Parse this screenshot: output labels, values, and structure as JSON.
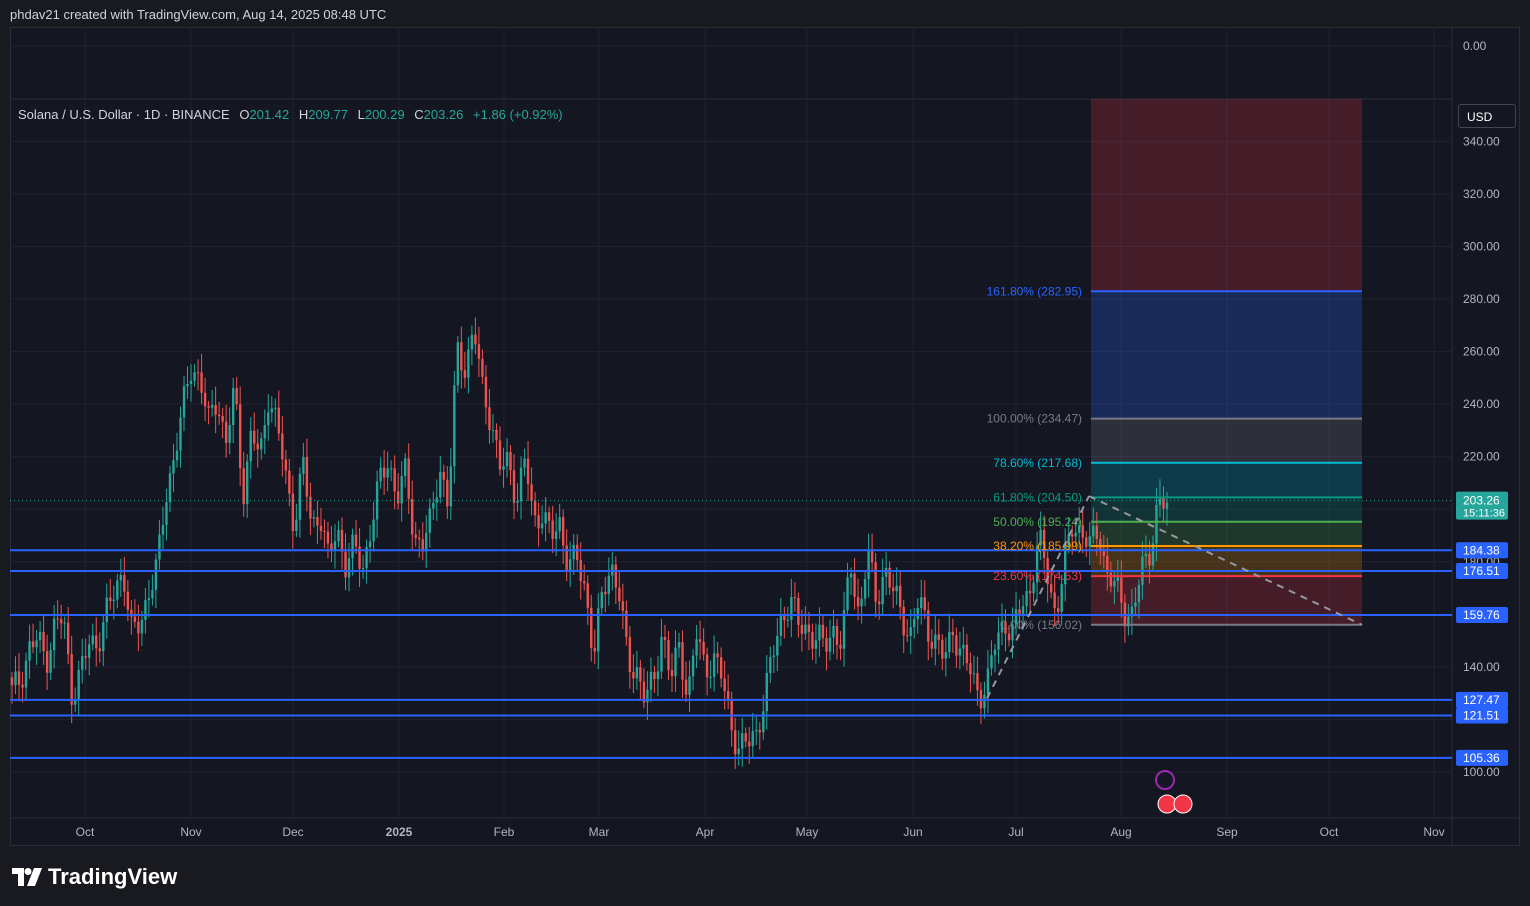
{
  "header": {
    "credit": "phdav21 created with TradingView.com, Aug 14, 2025 08:48 UTC"
  },
  "legend": {
    "symbol": "Solana / U.S. Dollar · 1D · BINANCE",
    "o_label": "O",
    "o": "201.42",
    "h_label": "H",
    "h": "209.77",
    "l_label": "L",
    "l": "200.29",
    "c_label": "C",
    "c": "203.26",
    "change": "+1.86 (+0.92%)"
  },
  "currency_button": "USD",
  "brand": "TradingView",
  "colors": {
    "up": "#26a69a",
    "down": "#ef5350",
    "support": "#2962ff",
    "background": "#141722"
  },
  "chart_data": {
    "type": "candlestick",
    "symbol": "SOLUSD",
    "timeframe": "1D",
    "y_axis": {
      "ticks": [
        0,
        100,
        120,
        140,
        160,
        180,
        200,
        220,
        240,
        260,
        280,
        300,
        320,
        340
      ],
      "tick_labels": [
        "0.00",
        "100.00",
        "120.00",
        "140.00",
        "160.00",
        "180.00",
        "200.00",
        "220.00",
        "240.00",
        "260.00",
        "280.00",
        "300.00",
        "320.00",
        "340.00"
      ]
    },
    "x_axis": {
      "labels": [
        "Oct",
        "Nov",
        "Dec",
        "2025",
        "Feb",
        "Mar",
        "Apr",
        "May",
        "Jun",
        "Jul",
        "Aug",
        "Sep",
        "Oct",
        "Nov"
      ],
      "bold": [
        "2025"
      ]
    },
    "last_price": {
      "value": "203.26",
      "countdown": "15:11:36"
    },
    "price_path": [
      [
        130,
        136
      ],
      [
        147,
        150
      ],
      [
        143,
        156
      ],
      [
        158,
        130
      ],
      [
        138,
        148
      ],
      [
        150,
        160
      ],
      [
        168,
        178
      ],
      [
        152,
        156
      ],
      [
        170,
        178
      ],
      [
        205,
        222
      ],
      [
        238,
        255
      ],
      [
        250,
        232
      ],
      [
        243,
        225
      ],
      [
        245,
        206
      ],
      [
        230,
        218
      ],
      [
        245,
        232
      ],
      [
        211,
        195
      ],
      [
        218,
        192
      ],
      [
        200,
        180
      ],
      [
        192,
        180
      ],
      [
        185,
        177
      ],
      [
        195,
        210
      ],
      [
        219,
        205
      ],
      [
        213,
        190
      ],
      [
        187,
        195
      ],
      [
        218,
        200
      ],
      [
        260,
        255
      ],
      [
        268,
        245
      ],
      [
        235,
        215
      ],
      [
        218,
        205
      ],
      [
        218,
        195
      ],
      [
        200,
        188
      ],
      [
        195,
        180
      ],
      [
        180,
        170
      ],
      [
        145,
        166
      ],
      [
        180,
        168
      ],
      [
        140,
        140
      ],
      [
        128,
        133
      ],
      [
        155,
        135
      ],
      [
        147,
        130
      ],
      [
        152,
        138
      ],
      [
        145,
        135
      ],
      [
        118,
        110
      ],
      [
        110,
        115
      ],
      [
        130,
        145
      ],
      [
        160,
        165
      ],
      [
        155,
        155
      ],
      [
        150,
        148
      ],
      [
        155,
        148
      ],
      [
        180,
        160
      ],
      [
        183,
        165
      ],
      [
        178,
        168
      ],
      [
        160,
        152
      ],
      [
        165,
        155
      ],
      [
        150,
        142
      ],
      [
        155,
        145
      ],
      [
        138,
        130
      ],
      [
        133,
        150
      ],
      [
        158,
        152
      ],
      [
        164,
        170
      ],
      [
        188,
        176
      ],
      [
        160,
        178
      ],
      [
        195,
        192
      ],
      [
        185,
        193
      ],
      [
        175,
        170
      ],
      [
        162,
        160
      ],
      [
        176,
        185
      ],
      [
        203,
        200
      ]
    ],
    "support_lines": [
      {
        "value": 184.38,
        "label": "184.38"
      },
      {
        "value": 176.51,
        "label": "176.51"
      },
      {
        "value": 159.76,
        "label": "159.76"
      },
      {
        "value": 127.47,
        "label": "127.47"
      },
      {
        "value": 121.51,
        "label": "121.51"
      },
      {
        "value": 105.36,
        "label": "105.36"
      }
    ],
    "fibonacci": [
      {
        "label": "161.80% (282.95)",
        "value": 282.95,
        "color": "#2962ff"
      },
      {
        "label": "100.00% (234.47)",
        "value": 234.47,
        "color": "#787b86"
      },
      {
        "label": "78.60% (217.68)",
        "value": 217.68,
        "color": "#00bcd4"
      },
      {
        "label": "61.80% (204.50)",
        "value": 204.5,
        "color": "#089981"
      },
      {
        "label": "50.00% (195.24)",
        "value": 195.24,
        "color": "#4caf50"
      },
      {
        "label": "38.20% (185.99)",
        "value": 185.99,
        "color": "#ff9800"
      },
      {
        "label": "23.60% (174.53)",
        "value": 174.53,
        "color": "#f23645"
      },
      {
        "label": "0.00% (156.02)",
        "value": 156.02,
        "color": "#787b86"
      }
    ]
  }
}
